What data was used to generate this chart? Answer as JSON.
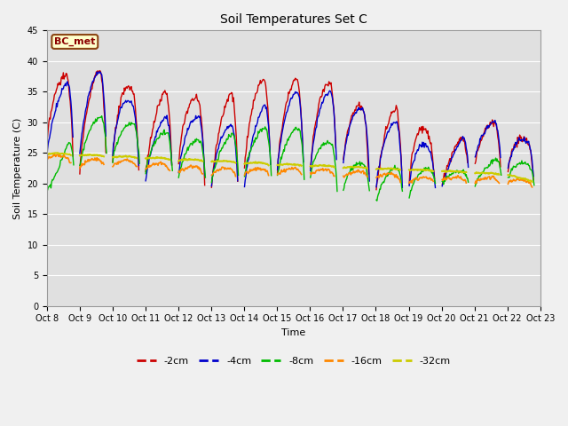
{
  "title": "Soil Temperatures Set C",
  "xlabel": "Time",
  "ylabel": "Soil Temperature (C)",
  "ylim": [
    0,
    45
  ],
  "yticks": [
    0,
    5,
    10,
    15,
    20,
    25,
    30,
    35,
    40,
    45
  ],
  "x_labels": [
    "Oct 8",
    "Oct 9",
    "Oct 10",
    "Oct 11",
    "Oct 12",
    "Oct 13",
    "Oct 14",
    "Oct 15",
    "Oct 16",
    "Oct 17",
    "Oct 18",
    "Oct 19",
    "Oct 20",
    "Oct 21",
    "Oct 22",
    "Oct 23"
  ],
  "annotation": "BC_met",
  "colors": {
    "-2cm": "#cc0000",
    "-4cm": "#0000cc",
    "-8cm": "#00bb00",
    "-16cm": "#ff8800",
    "-32cm": "#cccc00"
  },
  "fig_bg": "#f0f0f0",
  "plot_bg": "#e0e0e0",
  "grid_color": "#ffffff",
  "figsize": [
    6.4,
    4.8
  ],
  "dpi": 100
}
